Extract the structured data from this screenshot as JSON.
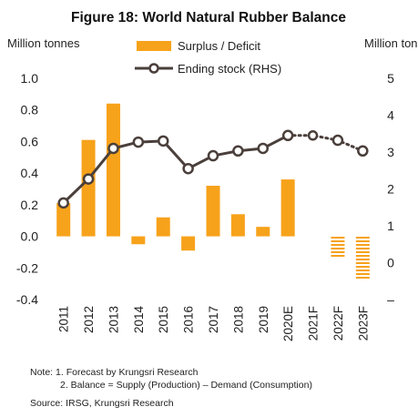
{
  "chart_data": {
    "type": "bar+line",
    "title": "Figure 18: World Natural Rubber Balance",
    "ylabel_left": "Million tonnes",
    "ylabel_right": "Million tonnes",
    "ylim_left": [
      -0.4,
      1.0
    ],
    "ylim_right": [
      -1,
      5
    ],
    "yticks_left": [
      "1.0",
      "0.8",
      "0.6",
      "0.4",
      "0.2",
      "0.0",
      "-0.2",
      "-0.4"
    ],
    "yticks_right": [
      "5",
      "4",
      "3",
      "2",
      "1",
      "0",
      "–"
    ],
    "categories": [
      "2011",
      "2012",
      "2013",
      "2014",
      "2015",
      "2016",
      "2017",
      "2018",
      "2019",
      "2020E",
      "2021F",
      "2022F",
      "2023F"
    ],
    "series": [
      {
        "name": "Surplus / Deficit",
        "kind": "bar",
        "axis": "left",
        "color": "#F7A21B",
        "values": [
          0.21,
          0.61,
          0.84,
          -0.05,
          0.12,
          -0.09,
          0.32,
          0.14,
          0.06,
          0.36,
          null,
          -0.13,
          -0.27
        ],
        "forecast_hatched": [
          false,
          false,
          false,
          false,
          false,
          false,
          false,
          false,
          false,
          false,
          false,
          true,
          true
        ]
      },
      {
        "name": "Ending stock (RHS)",
        "kind": "line",
        "axis": "right",
        "color": "#4A3F3B",
        "values": [
          1.62,
          2.27,
          3.1,
          3.27,
          3.3,
          2.55,
          2.9,
          3.03,
          3.1,
          3.45,
          3.45,
          3.32,
          3.03
        ],
        "forecast_dotted_from_index": 9
      }
    ],
    "legend_placement": "top",
    "grid": false
  },
  "notes": {
    "line1": "Note: 1. Forecast by Krungsri Research",
    "line2": "2. Balance = Supply (Production) – Demand (Consumption)",
    "source": "Source: IRSG, Krungsri Research"
  }
}
